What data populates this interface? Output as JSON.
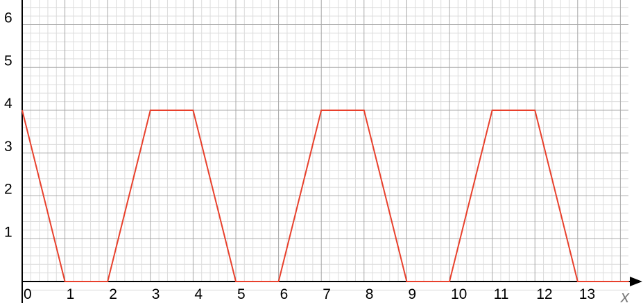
{
  "chart_data": {
    "type": "line",
    "title": "",
    "xlabel": "x",
    "ylabel": "",
    "xlim": [
      0,
      14.2
    ],
    "ylim": [
      0,
      6.6
    ],
    "x_ticks": [
      "0",
      "1",
      "2",
      "3",
      "4",
      "5",
      "6",
      "7",
      "8",
      "9",
      "10",
      "11",
      "12",
      "13"
    ],
    "y_ticks": [
      "1",
      "2",
      "3",
      "4",
      "5",
      "6"
    ],
    "grid": true,
    "minor_grid_per_unit": 5,
    "colors": {
      "series": "#e8402c",
      "major_grid": "#a8a8a8",
      "minor_grid": "#dcdcdc",
      "axis": "#000000"
    },
    "series": [
      {
        "x": [
          0,
          1,
          2,
          3,
          4,
          5,
          6,
          7,
          8,
          9,
          10,
          11,
          12,
          13,
          14.2
        ],
        "y": [
          4,
          0,
          0,
          4,
          4,
          0,
          0,
          4,
          4,
          0,
          0,
          4,
          4,
          0,
          0
        ]
      }
    ]
  }
}
